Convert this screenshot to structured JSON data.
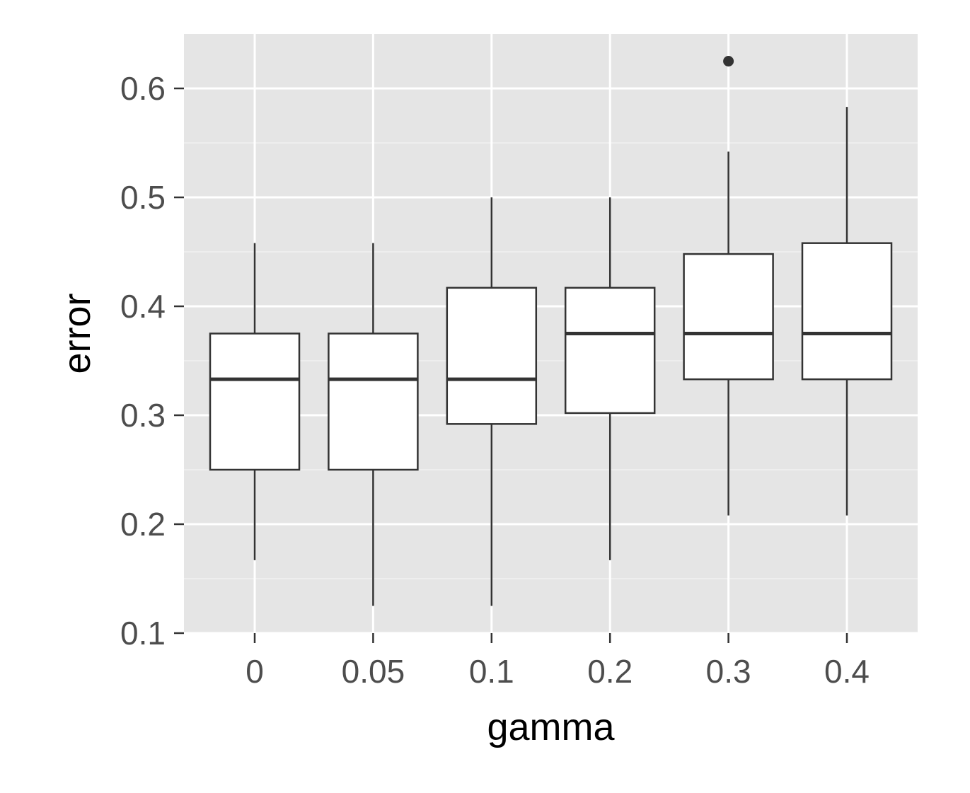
{
  "chart_data": {
    "type": "boxplot",
    "title": "",
    "xlabel": "gamma",
    "ylabel": "error",
    "categories": [
      "0",
      "0.05",
      "0.1",
      "0.2",
      "0.3",
      "0.4"
    ],
    "ylim": [
      0.1,
      0.65
    ],
    "yticks": [
      0.1,
      0.2,
      0.3,
      0.4,
      0.5,
      0.6
    ],
    "ytick_labels": [
      "0.1",
      "0.2",
      "0.3",
      "0.4",
      "0.5",
      "0.6"
    ],
    "grid": true,
    "panel_background": "#e5e5e5",
    "box_fill": "#ffffff",
    "box_stroke": "#333333",
    "boxes": [
      {
        "category": "0",
        "whisker_low": 0.167,
        "q1": 0.25,
        "median": 0.333,
        "q3": 0.375,
        "whisker_high": 0.458,
        "outliers": []
      },
      {
        "category": "0.05",
        "whisker_low": 0.125,
        "q1": 0.25,
        "median": 0.333,
        "q3": 0.375,
        "whisker_high": 0.458,
        "outliers": []
      },
      {
        "category": "0.1",
        "whisker_low": 0.125,
        "q1": 0.292,
        "median": 0.333,
        "q3": 0.417,
        "whisker_high": 0.5,
        "outliers": []
      },
      {
        "category": "0.2",
        "whisker_low": 0.167,
        "q1": 0.302,
        "median": 0.375,
        "q3": 0.417,
        "whisker_high": 0.5,
        "outliers": []
      },
      {
        "category": "0.3",
        "whisker_low": 0.208,
        "q1": 0.333,
        "median": 0.375,
        "q3": 0.448,
        "whisker_high": 0.542,
        "outliers": [
          0.625
        ]
      },
      {
        "category": "0.4",
        "whisker_low": 0.208,
        "q1": 0.333,
        "median": 0.375,
        "q3": 0.458,
        "whisker_high": 0.583,
        "outliers": []
      }
    ]
  }
}
